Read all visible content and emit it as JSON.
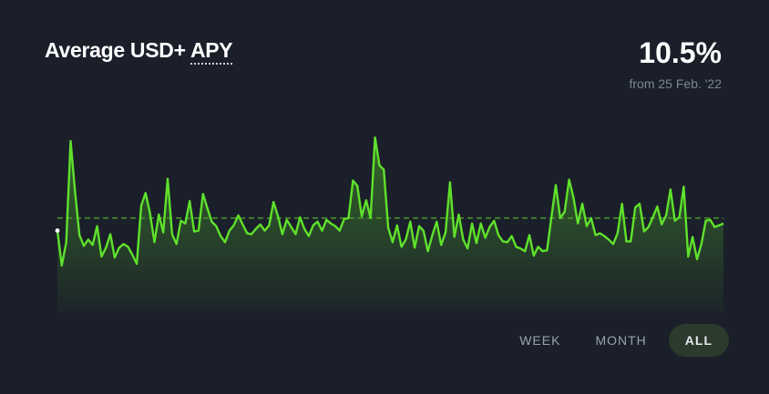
{
  "header": {
    "title_prefix": "Average USD+ ",
    "title_apy": "APY",
    "value": "10.5%",
    "since": "from 25 Feb. '22"
  },
  "tabs": [
    {
      "label": "WEEK",
      "active": false
    },
    {
      "label": "MONTH",
      "active": false
    },
    {
      "label": "ALL",
      "active": true
    }
  ],
  "colors": {
    "line": "#5fe12b",
    "average": "#4c9a2a",
    "background": "#1b1f2a"
  },
  "chart_data": {
    "type": "area",
    "title": "Average USD+ APY",
    "average": 10.5,
    "ylim": [
      0,
      25
    ],
    "values": [
      9.1,
      5.2,
      7.8,
      19.1,
      13.4,
      8.6,
      7.4,
      8.1,
      7.5,
      9.6,
      6.2,
      7.2,
      8.7,
      6.1,
      7.2,
      7.6,
      7.3,
      6.4,
      5.4,
      11.9,
      13.3,
      11,
      7.8,
      10.9,
      8.9,
      14.9,
      8.7,
      7.6,
      10.2,
      9.9,
      12.4,
      9,
      9.1,
      13.2,
      11.6,
      10.1,
      9.6,
      8.5,
      7.8,
      9.1,
      9.7,
      10.8,
      9.8,
      8.8,
      8.7,
      9.3,
      9.8,
      9.1,
      9.7,
      12.3,
      10.7,
      8.7,
      10.3,
      9.5,
      8.7,
      10.6,
      9.3,
      8.5,
      9.7,
      10.1,
      9.1,
      10.3,
      9.9,
      9.6,
      9.1,
      10.4,
      10.5,
      14.7,
      14.1,
      10.7,
      12.5,
      10.5,
      19.5,
      16.4,
      15.9,
      9.4,
      7.8,
      9.7,
      7.3,
      8.1,
      10.1,
      7.2,
      9.6,
      9.1,
      6.8,
      8.6,
      10.1,
      7.5,
      8.9,
      14.5,
      8.4,
      10.9,
      8.1,
      7.1,
      9.9,
      7.7,
      9.9,
      8.3,
      9.5,
      10.2,
      8.6,
      7.9,
      7.8,
      8.5,
      7.3,
      7.1,
      6.8,
      8.6,
      6.3,
      7.3,
      6.8,
      6.9,
      10.6,
      14.2,
      10.5,
      11.2,
      14.8,
      12.8,
      9.9,
      12.1,
      9.6,
      10.5,
      8.6,
      8.8,
      8.5,
      8.1,
      7.6,
      8.8,
      12.1,
      7.9,
      7.9,
      11.7,
      12.1,
      9,
      9.5,
      10.6,
      11.8,
      9.8,
      10.8,
      13.7,
      10.2,
      10.6,
      14,
      6.2,
      8.4,
      5.9,
      7.6,
      10.2,
      10.3,
      9.5,
      9.7,
      9.9
    ]
  }
}
